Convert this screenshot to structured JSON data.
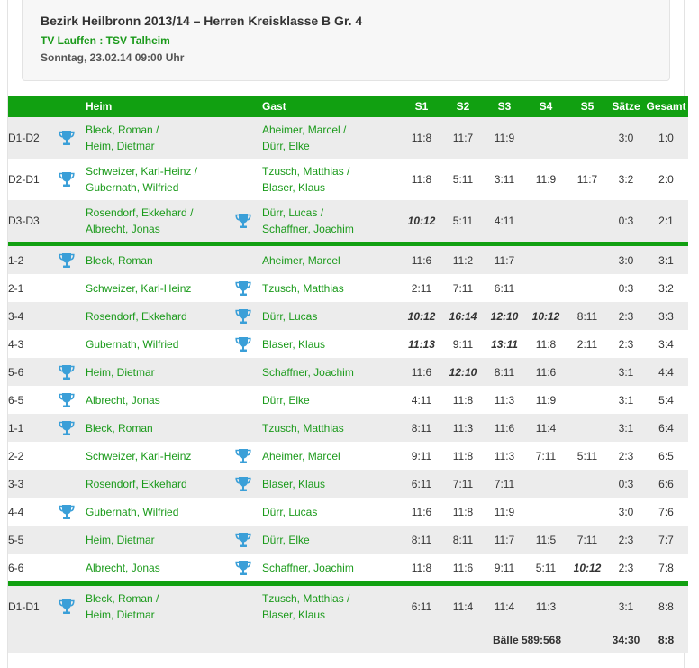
{
  "header": {
    "title": "Bezirk Heilbronn 2013/14 – Herren Kreisklasse B Gr. 4",
    "teams": "TV Lauffen : TSV Talheim",
    "date": "Sonntag, 23.02.14 09:00 Uhr"
  },
  "columns": {
    "heim": "Heim",
    "gast": "Gast",
    "s1": "S1",
    "s2": "S2",
    "s3": "S3",
    "s4": "S4",
    "s5": "S5",
    "saetze": "Sätze",
    "gesamt": "Gesamt"
  },
  "colors": {
    "accent": "#11a011",
    "link": "#1a9a1a",
    "row_alt": "#ececec"
  },
  "groups": [
    [
      {
        "code": "D1-D2",
        "winner": "home",
        "home": [
          "Bleck, Roman /",
          "Heim, Dietmar"
        ],
        "guest": [
          "Aheimer, Marcel /",
          "Dürr, Elke"
        ],
        "sets": [
          "11:8",
          "11:7",
          "11:9",
          "",
          ""
        ],
        "bold": [
          false,
          false,
          false,
          false,
          false
        ],
        "saetze": "3:0",
        "gesamt": "1:0"
      },
      {
        "code": "D2-D1",
        "winner": "home",
        "home": [
          "Schweizer, Karl-Heinz /",
          "Gubernath, Wilfried"
        ],
        "guest": [
          "Tzusch, Matthias /",
          "Blaser, Klaus"
        ],
        "sets": [
          "11:8",
          "5:11",
          "3:11",
          "11:9",
          "11:7"
        ],
        "bold": [
          false,
          false,
          false,
          false,
          false
        ],
        "saetze": "3:2",
        "gesamt": "2:0"
      },
      {
        "code": "D3-D3",
        "winner": "guest",
        "home": [
          "Rosendorf, Ekkehard /",
          "Albrecht, Jonas"
        ],
        "guest": [
          "Dürr, Lucas /",
          "Schaffner, Joachim"
        ],
        "sets": [
          "10:12",
          "5:11",
          "4:11",
          "",
          ""
        ],
        "bold": [
          true,
          false,
          false,
          false,
          false
        ],
        "saetze": "0:3",
        "gesamt": "2:1"
      }
    ],
    [
      {
        "code": "1-2",
        "winner": "home",
        "home": [
          "Bleck, Roman"
        ],
        "guest": [
          "Aheimer, Marcel"
        ],
        "sets": [
          "11:6",
          "11:2",
          "11:7",
          "",
          ""
        ],
        "bold": [
          false,
          false,
          false,
          false,
          false
        ],
        "saetze": "3:0",
        "gesamt": "3:1"
      },
      {
        "code": "2-1",
        "winner": "guest",
        "home": [
          "Schweizer, Karl-Heinz"
        ],
        "guest": [
          "Tzusch, Matthias"
        ],
        "sets": [
          "2:11",
          "7:11",
          "6:11",
          "",
          ""
        ],
        "bold": [
          false,
          false,
          false,
          false,
          false
        ],
        "saetze": "0:3",
        "gesamt": "3:2"
      },
      {
        "code": "3-4",
        "winner": "guest",
        "home": [
          "Rosendorf, Ekkehard"
        ],
        "guest": [
          "Dürr, Lucas"
        ],
        "sets": [
          "10:12",
          "16:14",
          "12:10",
          "10:12",
          "8:11"
        ],
        "bold": [
          true,
          true,
          true,
          true,
          false
        ],
        "saetze": "2:3",
        "gesamt": "3:3"
      },
      {
        "code": "4-3",
        "winner": "guest",
        "home": [
          "Gubernath, Wilfried"
        ],
        "guest": [
          "Blaser, Klaus"
        ],
        "sets": [
          "11:13",
          "9:11",
          "13:11",
          "11:8",
          "2:11"
        ],
        "bold": [
          true,
          false,
          true,
          false,
          false
        ],
        "saetze": "2:3",
        "gesamt": "3:4"
      },
      {
        "code": "5-6",
        "winner": "home",
        "home": [
          "Heim, Dietmar"
        ],
        "guest": [
          "Schaffner, Joachim"
        ],
        "sets": [
          "11:6",
          "12:10",
          "8:11",
          "11:6",
          ""
        ],
        "bold": [
          false,
          true,
          false,
          false,
          false
        ],
        "saetze": "3:1",
        "gesamt": "4:4"
      },
      {
        "code": "6-5",
        "winner": "home",
        "home": [
          "Albrecht, Jonas"
        ],
        "guest": [
          "Dürr, Elke"
        ],
        "sets": [
          "4:11",
          "11:8",
          "11:3",
          "11:9",
          ""
        ],
        "bold": [
          false,
          false,
          false,
          false,
          false
        ],
        "saetze": "3:1",
        "gesamt": "5:4"
      },
      {
        "code": "1-1",
        "winner": "home",
        "home": [
          "Bleck, Roman"
        ],
        "guest": [
          "Tzusch, Matthias"
        ],
        "sets": [
          "8:11",
          "11:3",
          "11:6",
          "11:4",
          ""
        ],
        "bold": [
          false,
          false,
          false,
          false,
          false
        ],
        "saetze": "3:1",
        "gesamt": "6:4"
      },
      {
        "code": "2-2",
        "winner": "guest",
        "home": [
          "Schweizer, Karl-Heinz"
        ],
        "guest": [
          "Aheimer, Marcel"
        ],
        "sets": [
          "9:11",
          "11:8",
          "11:3",
          "7:11",
          "5:11"
        ],
        "bold": [
          false,
          false,
          false,
          false,
          false
        ],
        "saetze": "2:3",
        "gesamt": "6:5"
      },
      {
        "code": "3-3",
        "winner": "guest",
        "home": [
          "Rosendorf, Ekkehard"
        ],
        "guest": [
          "Blaser, Klaus"
        ],
        "sets": [
          "6:11",
          "7:11",
          "7:11",
          "",
          ""
        ],
        "bold": [
          false,
          false,
          false,
          false,
          false
        ],
        "saetze": "0:3",
        "gesamt": "6:6"
      },
      {
        "code": "4-4",
        "winner": "home",
        "home": [
          "Gubernath, Wilfried"
        ],
        "guest": [
          "Dürr, Lucas"
        ],
        "sets": [
          "11:6",
          "11:8",
          "11:9",
          "",
          ""
        ],
        "bold": [
          false,
          false,
          false,
          false,
          false
        ],
        "saetze": "3:0",
        "gesamt": "7:6"
      },
      {
        "code": "5-5",
        "winner": "guest",
        "home": [
          "Heim, Dietmar"
        ],
        "guest": [
          "Dürr, Elke"
        ],
        "sets": [
          "8:11",
          "8:11",
          "11:7",
          "11:5",
          "7:11"
        ],
        "bold": [
          false,
          false,
          false,
          false,
          false
        ],
        "saetze": "2:3",
        "gesamt": "7:7"
      },
      {
        "code": "6-6",
        "winner": "guest",
        "home": [
          "Albrecht, Jonas"
        ],
        "guest": [
          "Schaffner, Joachim"
        ],
        "sets": [
          "11:8",
          "11:6",
          "9:11",
          "5:11",
          "10:12"
        ],
        "bold": [
          false,
          false,
          false,
          false,
          true
        ],
        "saetze": "2:3",
        "gesamt": "7:8"
      }
    ],
    [
      {
        "code": "D1-D1",
        "winner": "home",
        "home": [
          "Bleck, Roman /",
          "Heim, Dietmar"
        ],
        "guest": [
          "Tzusch, Matthias /",
          "Blaser, Klaus"
        ],
        "sets": [
          "6:11",
          "11:4",
          "11:4",
          "11:3",
          ""
        ],
        "bold": [
          false,
          false,
          false,
          false,
          false
        ],
        "saetze": "3:1",
        "gesamt": "8:8"
      }
    ]
  ],
  "footer": {
    "baelle": "Bälle 589:568",
    "saetze": "34:30",
    "gesamt": "8:8"
  }
}
